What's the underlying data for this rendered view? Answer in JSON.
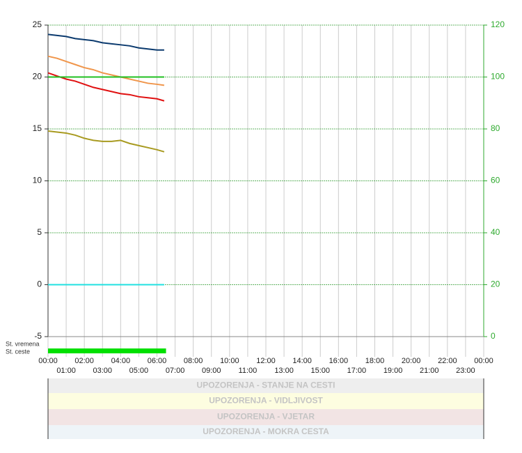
{
  "chart_data": {
    "type": "line",
    "x": [
      0,
      0.5,
      1,
      1.5,
      2,
      2.5,
      3,
      3.5,
      4,
      4.5,
      5,
      5.5,
      6,
      6.4
    ],
    "xlim": [
      0,
      24
    ],
    "xticks": [
      {
        "value": 0,
        "label": "00:00"
      },
      {
        "value": 1,
        "label": "01:00"
      },
      {
        "value": 2,
        "label": "02:00"
      },
      {
        "value": 3,
        "label": "03:00"
      },
      {
        "value": 4,
        "label": "04:00"
      },
      {
        "value": 5,
        "label": "05:00"
      },
      {
        "value": 6,
        "label": "06:00"
      },
      {
        "value": 7,
        "label": "07:00"
      },
      {
        "value": 8,
        "label": "08:00"
      },
      {
        "value": 9,
        "label": "09:00"
      },
      {
        "value": 10,
        "label": "10:00"
      },
      {
        "value": 11,
        "label": "11:00"
      },
      {
        "value": 12,
        "label": "12:00"
      },
      {
        "value": 13,
        "label": "13:00"
      },
      {
        "value": 14,
        "label": "14:00"
      },
      {
        "value": 15,
        "label": "15:00"
      },
      {
        "value": 16,
        "label": "16:00"
      },
      {
        "value": 17,
        "label": "17:00"
      },
      {
        "value": 18,
        "label": "18:00"
      },
      {
        "value": 19,
        "label": "19:00"
      },
      {
        "value": 20,
        "label": "20:00"
      },
      {
        "value": 21,
        "label": "21:00"
      },
      {
        "value": 22,
        "label": "22:00"
      },
      {
        "value": 23,
        "label": "23:00"
      },
      {
        "value": 24,
        "label": "00:00"
      }
    ],
    "ylim": [
      -5,
      25
    ],
    "yticks": [
      -5,
      0,
      5,
      10,
      15,
      20,
      25
    ],
    "y2lim": [
      0,
      120
    ],
    "y2ticks": [
      0,
      20,
      40,
      60,
      80,
      100,
      120
    ],
    "grid": true,
    "series": [
      {
        "color": "#0b3a6e",
        "values": [
          24.1,
          24.0,
          23.9,
          23.7,
          23.6,
          23.5,
          23.3,
          23.2,
          23.1,
          23.0,
          22.8,
          22.7,
          22.6,
          22.6
        ]
      },
      {
        "color": "#f0954a",
        "values": [
          22.0,
          21.8,
          21.5,
          21.2,
          20.9,
          20.7,
          20.4,
          20.2,
          20.0,
          19.8,
          19.6,
          19.4,
          19.3,
          19.2
        ]
      },
      {
        "color": "#e01010",
        "values": [
          20.4,
          20.1,
          19.8,
          19.6,
          19.3,
          19.0,
          18.8,
          18.6,
          18.4,
          18.3,
          18.1,
          18.0,
          17.9,
          17.7
        ]
      },
      {
        "color": "#20c020",
        "values": [
          20,
          20,
          20,
          20,
          20,
          20,
          20,
          20,
          20,
          20,
          20,
          20,
          20,
          20
        ]
      },
      {
        "color": "#a89a20",
        "values": [
          14.8,
          14.7,
          14.6,
          14.4,
          14.1,
          13.9,
          13.8,
          13.8,
          13.9,
          13.6,
          13.4,
          13.2,
          13.0,
          12.8
        ]
      },
      {
        "color": "#20e0e0",
        "values": [
          0,
          0,
          0,
          0,
          0,
          0,
          0,
          0,
          0,
          0,
          0,
          0,
          0,
          0
        ]
      }
    ],
    "status": {
      "labels": [
        "St. vremena",
        "St. ceste"
      ],
      "x": [
        0,
        6.5
      ],
      "color": "#00e000"
    }
  },
  "warnings": [
    {
      "label": "UPOZORENJA - STANJE NA CESTI",
      "color": "#eeeeee"
    },
    {
      "label": "UPOZORENJA - VIDLJIVOST",
      "color": "#fdfde0"
    },
    {
      "label": "UPOZORENJA - VJETAR",
      "color": "#f2e4e4"
    },
    {
      "label": "UPOZORENJA - MOKRA CESTA",
      "color": "#eef4f8"
    }
  ]
}
